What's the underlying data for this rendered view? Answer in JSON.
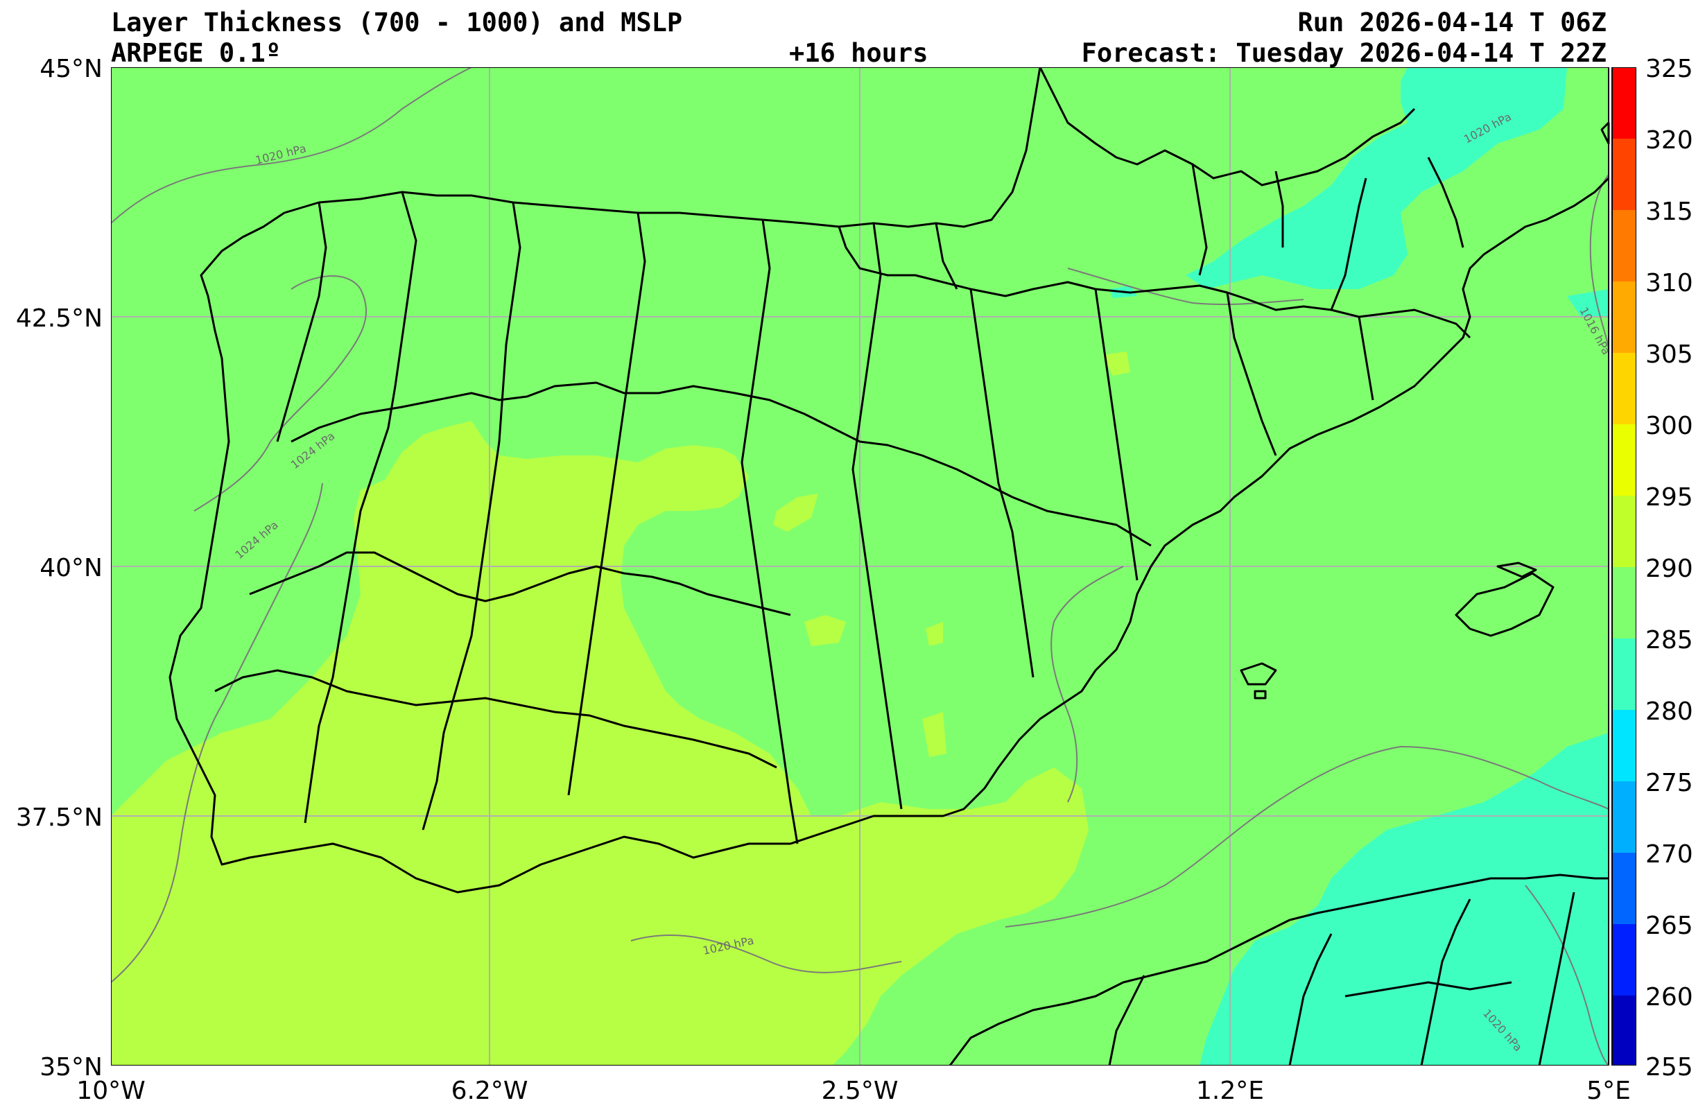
{
  "header": {
    "title": "Layer Thickness (700 - 1000) and MSLP",
    "model": "ARPEGE 0.1º",
    "lead_time": "+16 hours",
    "run": "Run 2026-04-14 T 06Z",
    "forecast": "Forecast: Tuesday 2026-04-14 T 22Z"
  },
  "axes": {
    "lat_labels": [
      "45°N",
      "42.5°N",
      "40°N",
      "37.5°N",
      "35°N"
    ],
    "lon_labels": [
      "10°W",
      "6.2°W",
      "2.5°W",
      "1.2°E",
      "5°E"
    ]
  },
  "colorbar": {
    "ticks": [
      "325",
      "320",
      "315",
      "310",
      "305",
      "300",
      "295",
      "290",
      "285",
      "280",
      "275",
      "270",
      "265",
      "260",
      "255"
    ],
    "colors": [
      "#ff0000",
      "#ff4400",
      "#ff7a00",
      "#ffaa00",
      "#ffd500",
      "#eaff00",
      "#c0ff2a",
      "#80ff6e",
      "#3fffc0",
      "#00e5ff",
      "#00b0ff",
      "#0066ff",
      "#0020ff",
      "#0000d5",
      "#00008f"
    ]
  },
  "field": {
    "background_color": "#80ff6e",
    "warm_color": "#b7ff44",
    "cool_color": "#3fffc0",
    "isobar_labels": [
      "1020 hPa",
      "1024 hPa",
      "1024 hPa",
      "1020 hPa",
      "1020 hPa",
      "1016 hPa",
      "1020 hPa"
    ]
  }
}
